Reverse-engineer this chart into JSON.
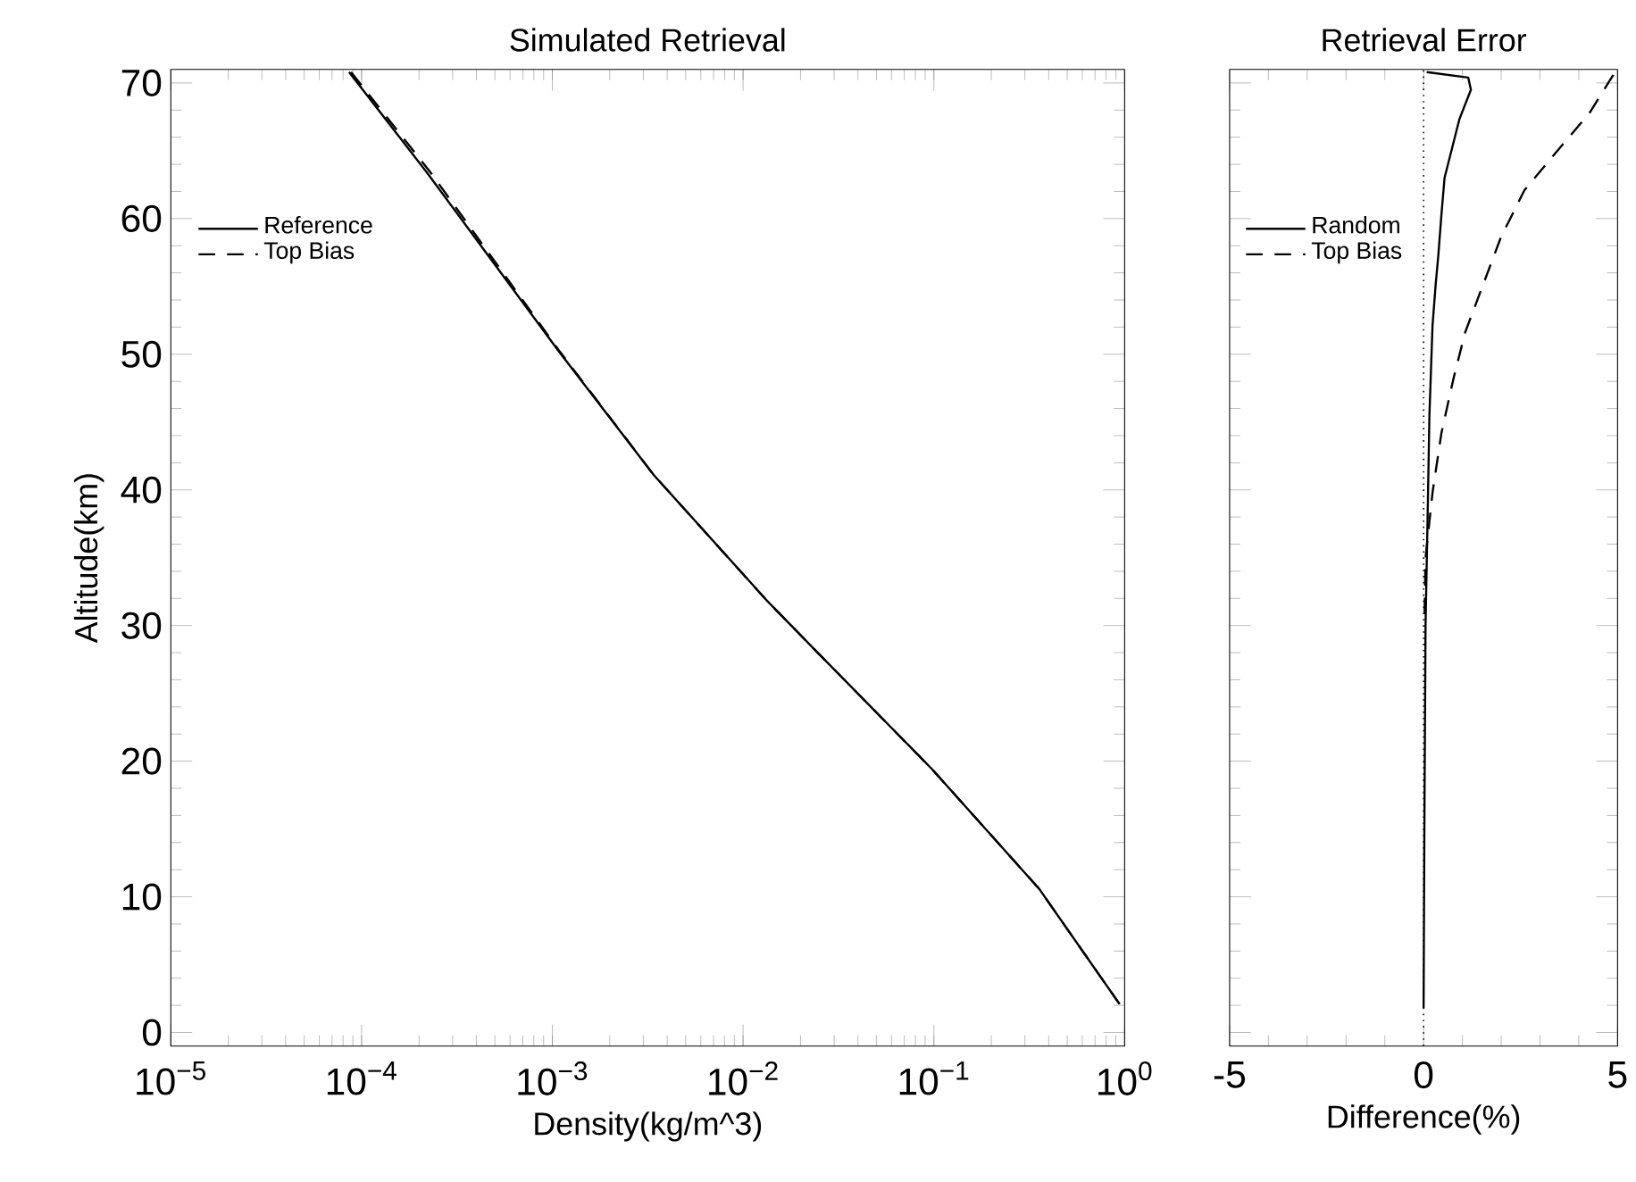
{
  "chart_data": [
    {
      "type": "line",
      "title": "Simulated Retrieval",
      "xlabel": "Density(kg/m^3)",
      "ylabel": "Altitude(km)",
      "log": "x",
      "xlim": [
        1e-05,
        1
      ],
      "xticks": [
        {
          "value": 1e-05,
          "label": "10$^{−5}$"
        },
        {
          "value": 0.0001,
          "label": "10$^{−4}$"
        },
        {
          "value": 0.001,
          "label": "10$^{−3}$"
        },
        {
          "value": 0.01,
          "label": "10$^{−2}$"
        },
        {
          "value": 0.1,
          "label": "10$^{−1}$"
        },
        {
          "value": 1,
          "label": "10$^{0}$"
        }
      ],
      "ylim": [
        -1,
        71
      ],
      "yticks": [
        0,
        10,
        20,
        30,
        40,
        50,
        60,
        70
      ],
      "legend": "top left",
      "series": [
        {
          "name": "Reference",
          "color": "#000000",
          "line_style": "solid",
          "x": [
            8.6e-05,
            0.00022,
            0.00107,
            0.0034,
            0.0132,
            0.025,
            0.098,
            0.356,
            0.94
          ],
          "values": [
            70.8,
            63.4,
            50.3,
            41.1,
            31.9,
            27.9,
            19.4,
            10.6,
            2.1
          ]
        },
        {
          "name": "Top Bias",
          "color": "#000000",
          "line_style": "dashed",
          "x": [
            8.8e-05,
            0.00023,
            0.00108,
            0.0034,
            0.0132,
            0.025,
            0.098,
            0.356,
            0.94
          ],
          "values": [
            70.8,
            63.4,
            50.3,
            41.1,
            31.9,
            27.9,
            19.4,
            10.6,
            2.1
          ]
        }
      ]
    },
    {
      "type": "line",
      "title": "Retrieval Error",
      "xlabel": "Difference(%)",
      "xlim": [
        -5,
        5
      ],
      "xticks": [
        -5,
        0,
        5
      ],
      "ylim": [
        -1,
        71
      ],
      "yticks": [
        0,
        10,
        20,
        30,
        40,
        50,
        60,
        70
      ],
      "tick_labels": "x",
      "legend": "top left",
      "ref_lines": [
        {
          "axis": "x",
          "value": 0,
          "color": "#000000",
          "line_style": "dotted"
        }
      ],
      "series": [
        {
          "name": "Random",
          "color": "#000000",
          "line_style": "solid",
          "x": [
            0.08,
            1.15,
            1.22,
            0.92,
            0.77,
            0.54,
            0.46,
            0.38,
            0.31,
            0.23,
            0.15,
            0.11,
            0.05,
            0.02,
            0.0
          ],
          "values": [
            70.8,
            70.4,
            69.5,
            67.3,
            65.6,
            63.0,
            60.3,
            57.3,
            55.1,
            52.1,
            45.5,
            39.0,
            30.0,
            15.0,
            1.8
          ]
        },
        {
          "name": "Top Bias",
          "color": "#000000",
          "line_style": "dashed",
          "x": [
            4.89,
            4.28,
            3.36,
            2.6,
            1.99,
            1.53,
            1.07,
            0.77,
            0.46,
            0.23,
            0.05,
            0.02
          ],
          "values": [
            70.6,
            67.8,
            64.7,
            62.1,
            58.6,
            55.1,
            51.6,
            48.2,
            44.2,
            39.8,
            35.0,
            30.0
          ]
        }
      ]
    }
  ]
}
